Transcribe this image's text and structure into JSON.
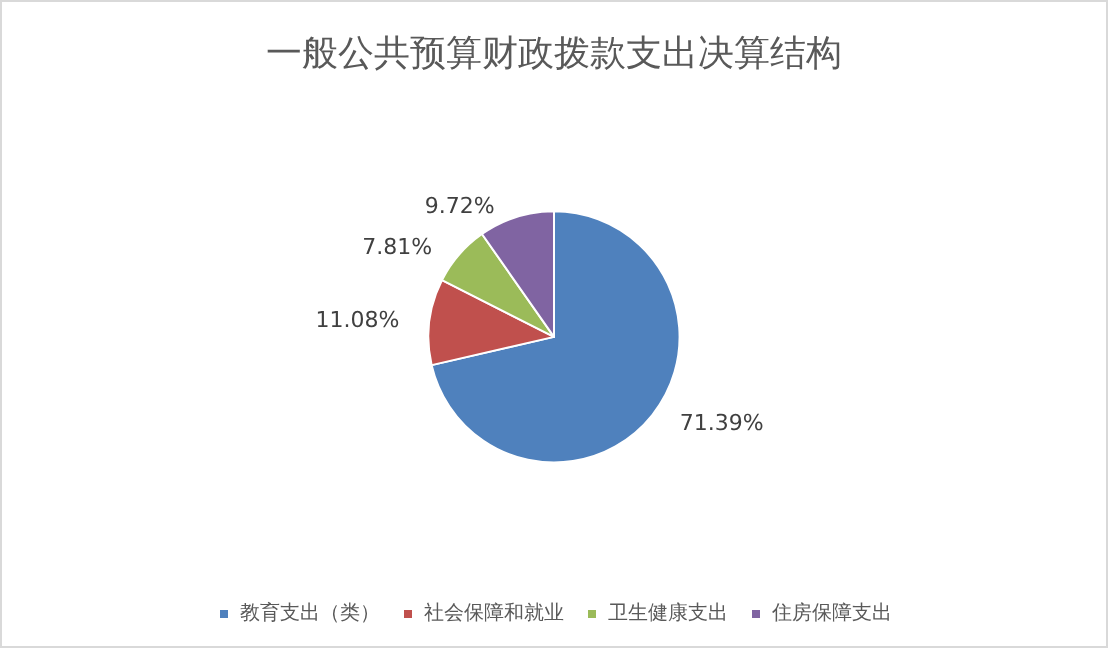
{
  "chart_data": {
    "type": "pie",
    "title": "一般公共预算财政拨款支出决算结构",
    "categories": [
      "教育支出（类）",
      "社会保障和就业",
      "卫生健康支出",
      "住房保障支出"
    ],
    "values": [
      71.39,
      11.08,
      7.81,
      9.72
    ],
    "value_labels": [
      "71.39%",
      "11.08%",
      "7.81%",
      "9.72%"
    ],
    "colors": [
      "#4f81bd",
      "#c0504d",
      "#9bbb59",
      "#8064a2"
    ],
    "legend": "bottom"
  }
}
